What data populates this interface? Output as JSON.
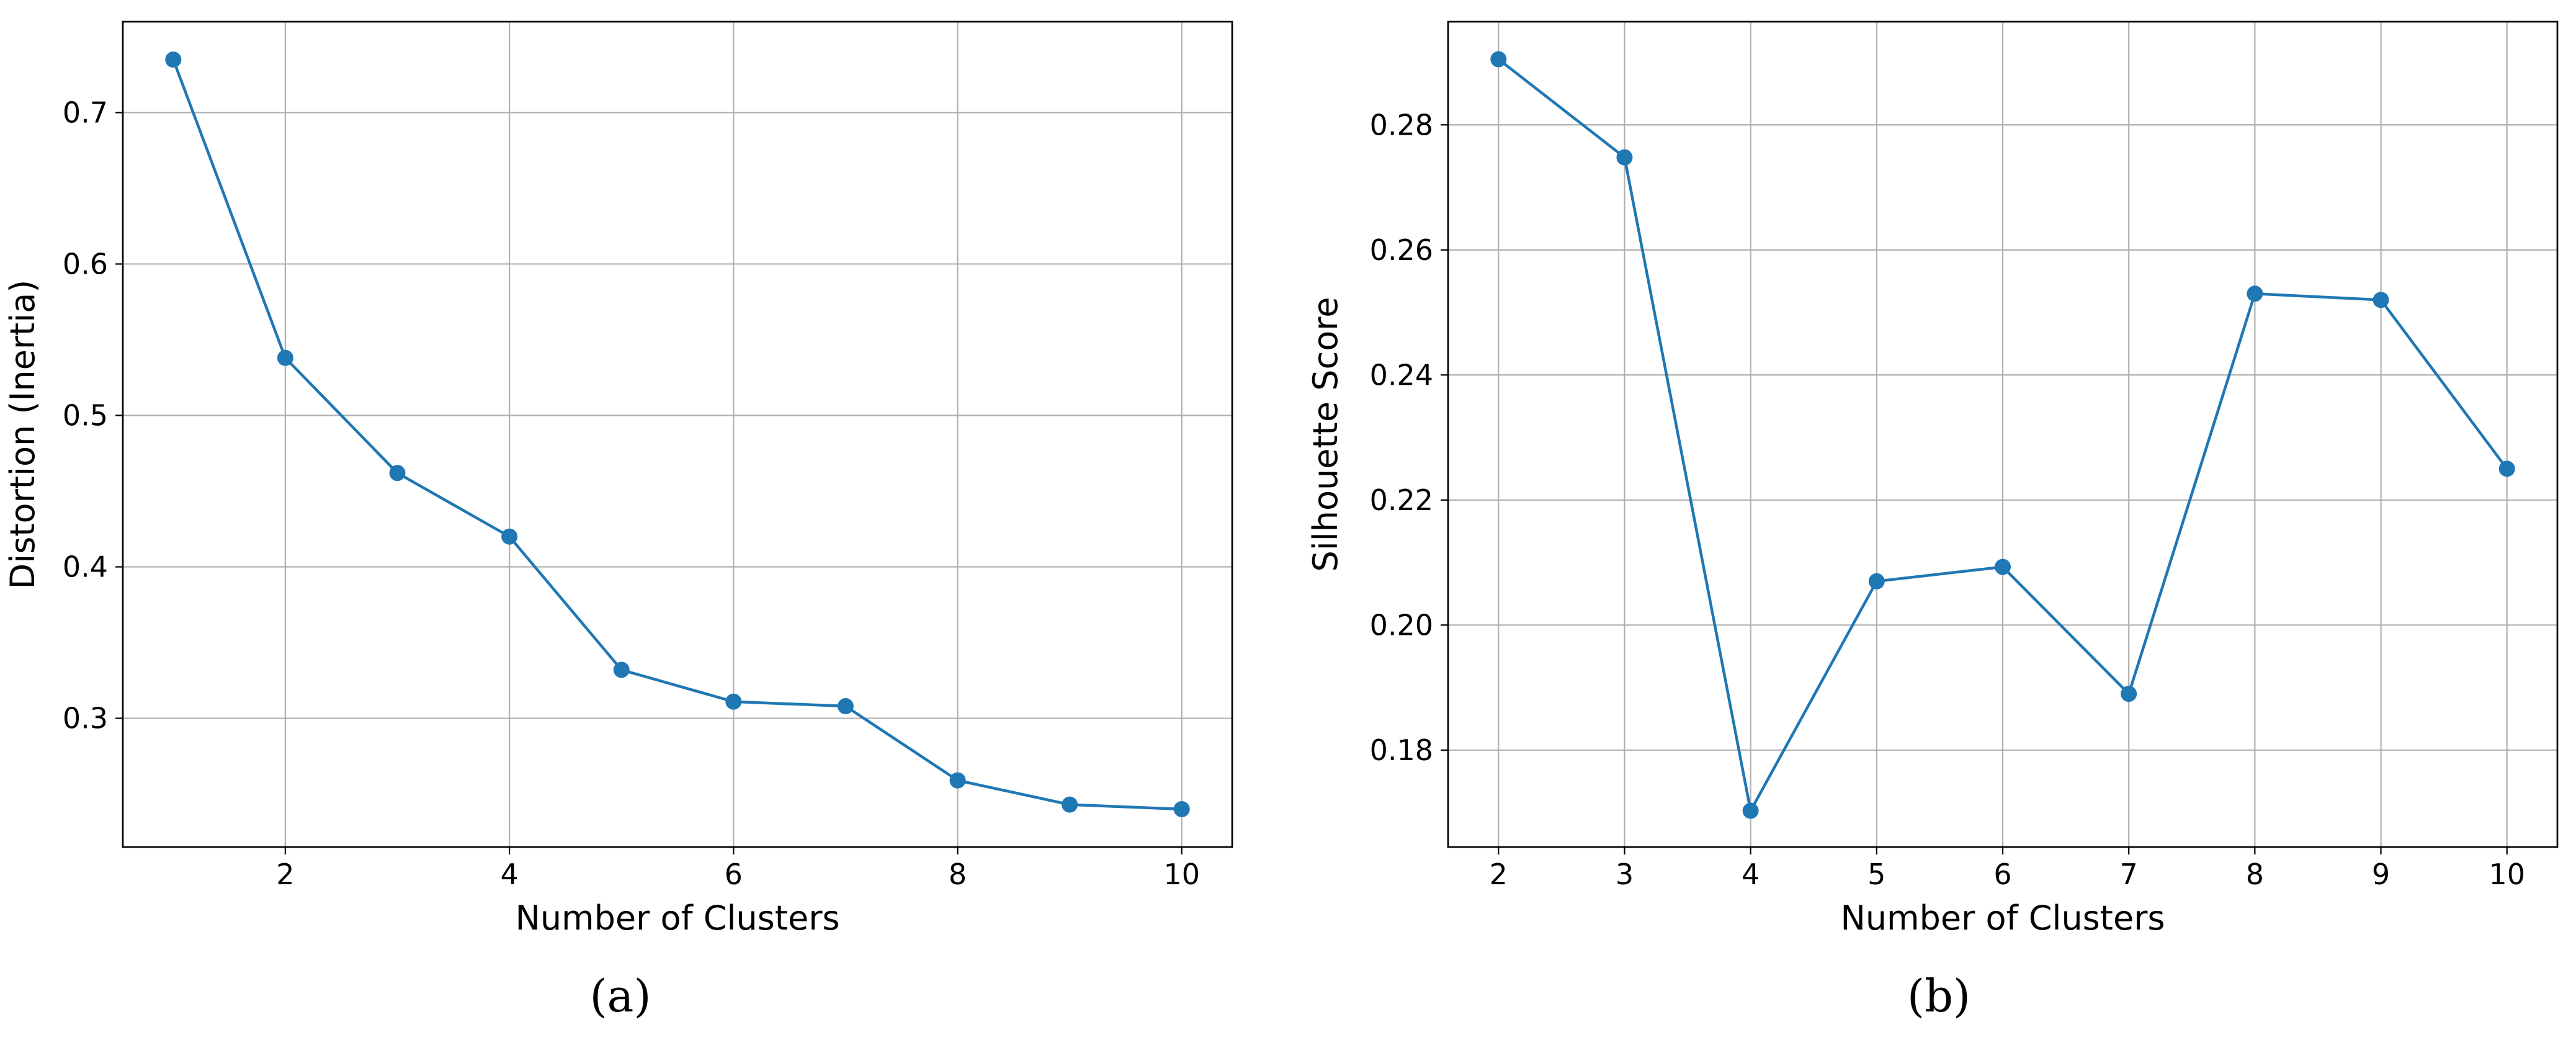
{
  "colors": {
    "series": "#1f77b4",
    "grid": "#b0b0b0",
    "axis": "#000000"
  },
  "chart_data": [
    {
      "type": "line",
      "caption": "(a)",
      "title": "",
      "xlabel": "Number of Clusters",
      "ylabel": "Distortion (Inertia)",
      "x": [
        1,
        2,
        3,
        4,
        5,
        6,
        7,
        8,
        9,
        10
      ],
      "series": [
        {
          "values": [
            0.735,
            0.538,
            0.462,
            0.42,
            0.332,
            0.311,
            0.308,
            0.259,
            0.243,
            0.24
          ]
        }
      ],
      "xlim": [
        0.55,
        10.45
      ],
      "ylim": [
        0.215,
        0.76
      ],
      "xticks": [
        2,
        4,
        6,
        8,
        10
      ],
      "xtick_labels": [
        "2",
        "4",
        "6",
        "8",
        "10"
      ],
      "yticks": [
        0.3,
        0.4,
        0.5,
        0.6,
        0.7
      ],
      "ytick_labels": [
        "0.3",
        "0.4",
        "0.5",
        "0.6",
        "0.7"
      ],
      "grid": true,
      "markers": "circle"
    },
    {
      "type": "line",
      "caption": "(b)",
      "title": "",
      "xlabel": "Number of Clusters",
      "ylabel": "Silhouette Score",
      "x": [
        2,
        3,
        4,
        5,
        6,
        7,
        8,
        9,
        10
      ],
      "series": [
        {
          "values": [
            0.2905,
            0.2748,
            0.1703,
            0.207,
            0.2093,
            0.189,
            0.253,
            0.252,
            0.225
          ]
        }
      ],
      "xlim": [
        1.6,
        10.4
      ],
      "ylim": [
        0.1645,
        0.2965
      ],
      "xticks": [
        2,
        3,
        4,
        5,
        6,
        7,
        8,
        9,
        10
      ],
      "xtick_labels": [
        "2",
        "3",
        "4",
        "5",
        "6",
        "7",
        "8",
        "9",
        "10"
      ],
      "yticks": [
        0.18,
        0.2,
        0.22,
        0.24,
        0.26,
        0.28
      ],
      "ytick_labels": [
        "0.18",
        "0.20",
        "0.22",
        "0.24",
        "0.26",
        "0.28"
      ],
      "grid": true,
      "markers": "circle"
    }
  ]
}
